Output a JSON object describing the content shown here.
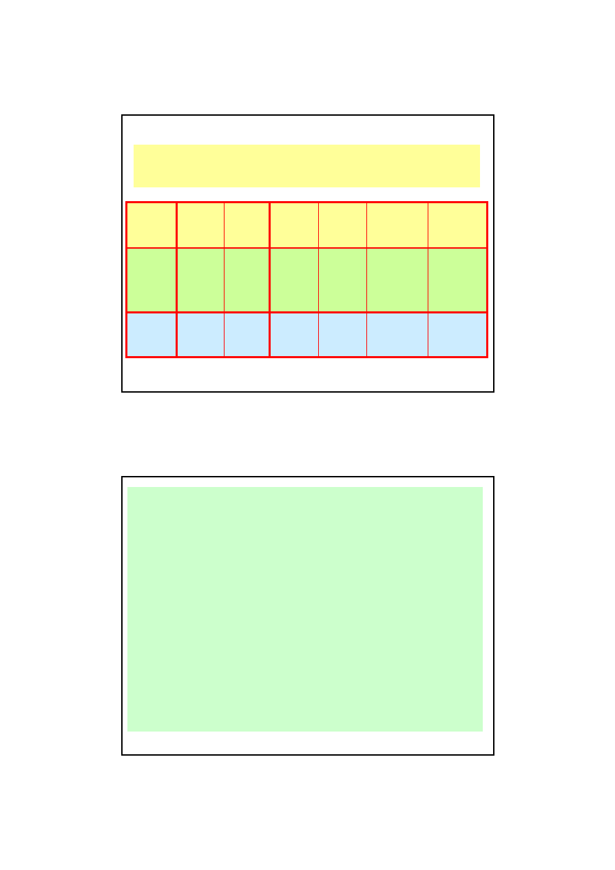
{
  "page": {
    "background": "#FFFFFF",
    "slide_count": 2
  },
  "slide1": {
    "frame": {
      "border_color": "#000000",
      "fill": "#FFFFFF"
    },
    "title_banner": {
      "fill": "#FFFF99",
      "text": ""
    },
    "table": {
      "border_color": "#FF0000",
      "column_count": 7,
      "thick_separators_after_columns": [
        1,
        3
      ],
      "rows": [
        {
          "label": "top-row",
          "fill": "#FFFF99",
          "cells": [
            "",
            "",
            "",
            "",
            "",
            "",
            ""
          ]
        },
        {
          "label": "middle-row",
          "fill": "#CCFF99",
          "cells": [
            "",
            "",
            "",
            "",
            "",
            "",
            ""
          ]
        },
        {
          "label": "bottom-row",
          "fill": "#CCECFF",
          "cells": [
            "",
            "",
            "",
            "",
            "",
            "",
            ""
          ]
        }
      ]
    }
  },
  "slide2": {
    "frame": {
      "border_color": "#000000",
      "fill": "#FFFFFF"
    },
    "content_rect": {
      "fill": "#CCFFCC",
      "text": ""
    }
  }
}
